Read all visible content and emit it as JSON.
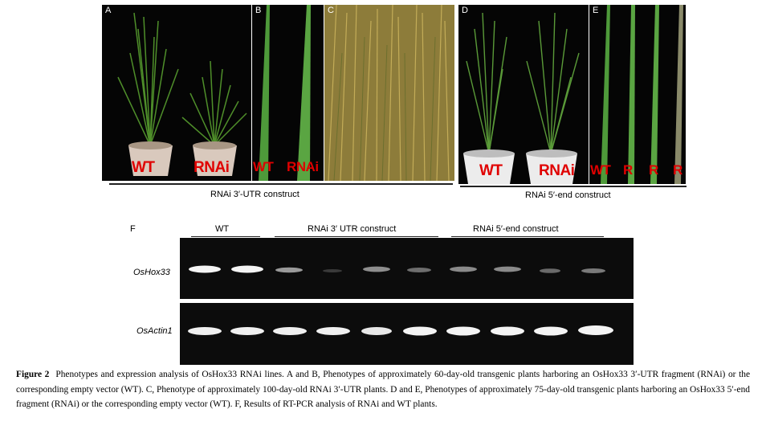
{
  "panels": {
    "A": {
      "letter": "A",
      "label_left": "WT",
      "label_right": "RNAi"
    },
    "B": {
      "letter": "B",
      "label_left": "WT",
      "label_right": "RNAi"
    },
    "C": {
      "letter": "C"
    },
    "D": {
      "letter": "D",
      "label_left": "WT",
      "label_right": "RNAi"
    },
    "E": {
      "letter": "E",
      "labels": [
        "WT",
        "R",
        "R",
        "R"
      ]
    }
  },
  "constructs": {
    "left": "RNAi 3′-UTR construct",
    "right": "RNAi 5′-end construct"
  },
  "gel": {
    "panel_letter": "F",
    "groups": [
      "WT",
      "RNAi 3′ UTR construct",
      "RNAi 5′-end construct"
    ],
    "rows": [
      "OsHox33",
      "OsActin1"
    ]
  },
  "caption": {
    "figure_label": "Figure 2",
    "text": "Phenotypes and expression analysis of OsHox33 RNAi lines. A and B, Phenotypes of approximately 60-day-old transgenic plants harboring an OsHox33 3′-UTR fragment (RNAi) or the corresponding empty vector (WT). C, Phenotype of approximately 100-day-old RNAi 3′-UTR plants. D and E, Phenotypes of approximately 75-day-old transgenic plants harboring an OsHox33 5′-end fragment (RNAi) or the corresponding empty vector (WT). F, Results of RT-PCR analysis of RNAi and WT plants."
  },
  "colors": {
    "label_red": "#e00000",
    "gel_background": "#0c0c0c",
    "gel_band": "#f4f4f4"
  }
}
